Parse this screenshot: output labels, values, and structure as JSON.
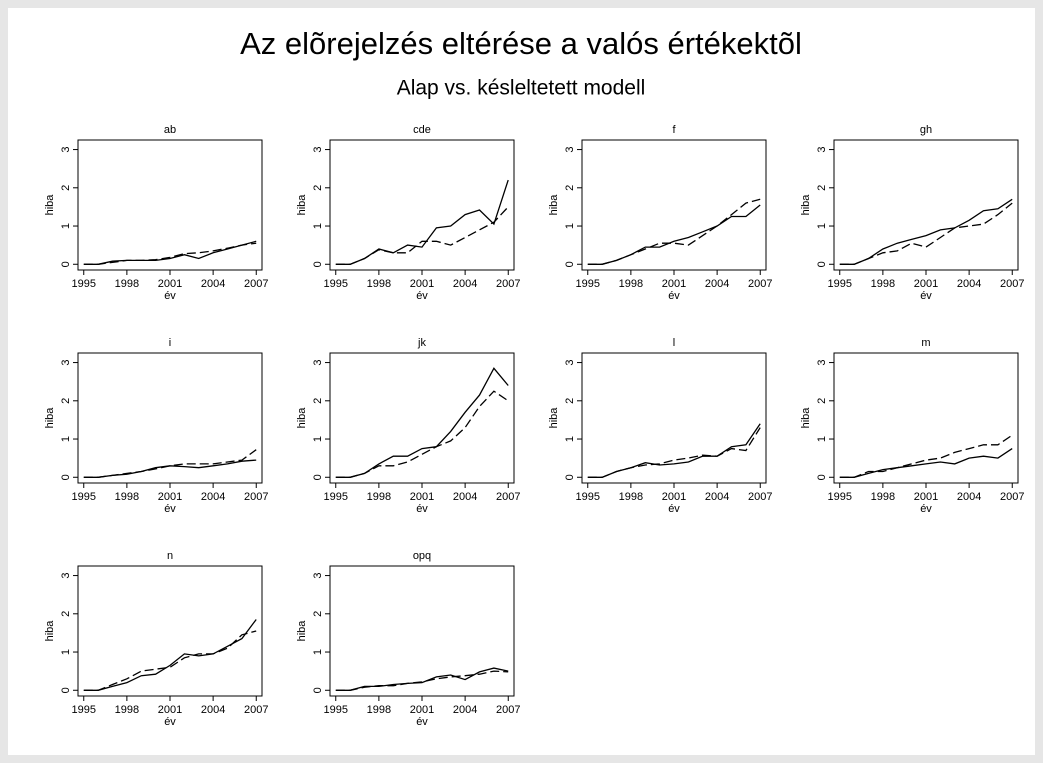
{
  "title": "Az elõrejelzés eltérése a valós értékektõl",
  "subtitle": "Alap vs. késleltetett modell",
  "chart_data": [
    {
      "type": "line",
      "title": "ab",
      "xlabel": "év",
      "ylabel": "hiba",
      "x": [
        1995,
        1996,
        1997,
        1998,
        1999,
        2000,
        2001,
        2002,
        2003,
        2004,
        2005,
        2006,
        2007
      ],
      "xlim": [
        1994.6,
        2007.4
      ],
      "xticks": [
        1995,
        1998,
        2001,
        2004,
        2007
      ],
      "ylim": [
        -0.15,
        3.25
      ],
      "yticks": [
        0,
        1,
        2,
        3
      ],
      "series": [
        {
          "color": "#000000",
          "style": "solid",
          "values": [
            0,
            0,
            0.08,
            0.1,
            0.1,
            0.1,
            0.15,
            0.25,
            0.15,
            0.3,
            0.4,
            0.5,
            0.6
          ]
        },
        {
          "color": "#000000",
          "style": "dashed",
          "values": [
            0,
            0,
            0.05,
            0.1,
            0.1,
            0.12,
            0.18,
            0.28,
            0.3,
            0.35,
            0.42,
            0.5,
            0.55
          ]
        }
      ]
    },
    {
      "type": "line",
      "title": "cde",
      "xlabel": "év",
      "ylabel": "hiba",
      "x": [
        1995,
        1996,
        1997,
        1998,
        1999,
        2000,
        2001,
        2002,
        2003,
        2004,
        2005,
        2006,
        2007
      ],
      "xlim": [
        1994.6,
        2007.4
      ],
      "xticks": [
        1995,
        1998,
        2001,
        2004,
        2007
      ],
      "ylim": [
        -0.15,
        3.25
      ],
      "yticks": [
        0,
        1,
        2,
        3
      ],
      "series": [
        {
          "color": "#000000",
          "style": "solid",
          "values": [
            0,
            0,
            0.15,
            0.4,
            0.3,
            0.5,
            0.45,
            0.95,
            1.0,
            1.3,
            1.42,
            1.05,
            2.2
          ]
        },
        {
          "color": "#000000",
          "style": "dashed",
          "values": [
            0,
            0,
            0.15,
            0.38,
            0.3,
            0.3,
            0.6,
            0.6,
            0.5,
            0.7,
            0.9,
            1.1,
            1.5
          ]
        }
      ]
    },
    {
      "type": "line",
      "title": "f",
      "xlabel": "év",
      "ylabel": "hiba",
      "x": [
        1995,
        1996,
        1997,
        1998,
        1999,
        2000,
        2001,
        2002,
        2003,
        2004,
        2005,
        2006,
        2007
      ],
      "xlim": [
        1994.6,
        2007.4
      ],
      "xticks": [
        1995,
        1998,
        2001,
        2004,
        2007
      ],
      "ylim": [
        -0.15,
        3.25
      ],
      "yticks": [
        0,
        1,
        2,
        3
      ],
      "series": [
        {
          "color": "#000000",
          "style": "solid",
          "values": [
            0,
            0,
            0.1,
            0.25,
            0.45,
            0.45,
            0.6,
            0.7,
            0.85,
            1.0,
            1.25,
            1.25,
            1.55
          ]
        },
        {
          "color": "#000000",
          "style": "dashed",
          "values": [
            0,
            0,
            0.1,
            0.25,
            0.4,
            0.55,
            0.55,
            0.5,
            0.75,
            1.0,
            1.3,
            1.6,
            1.7
          ]
        }
      ]
    },
    {
      "type": "line",
      "title": "gh",
      "xlabel": "év",
      "ylabel": "hiba",
      "x": [
        1995,
        1996,
        1997,
        1998,
        1999,
        2000,
        2001,
        2002,
        2003,
        2004,
        2005,
        2006,
        2007
      ],
      "xlim": [
        1994.6,
        2007.4
      ],
      "xticks": [
        1995,
        1998,
        2001,
        2004,
        2007
      ],
      "ylim": [
        -0.15,
        3.25
      ],
      "yticks": [
        0,
        1,
        2,
        3
      ],
      "series": [
        {
          "color": "#000000",
          "style": "solid",
          "values": [
            0,
            0,
            0.15,
            0.4,
            0.55,
            0.65,
            0.75,
            0.9,
            0.95,
            1.15,
            1.4,
            1.45,
            1.7
          ]
        },
        {
          "color": "#000000",
          "style": "dashed",
          "values": [
            0,
            0,
            0.15,
            0.3,
            0.35,
            0.55,
            0.45,
            0.7,
            0.95,
            1.0,
            1.05,
            1.3,
            1.6
          ]
        }
      ]
    },
    {
      "type": "line",
      "title": "i",
      "xlabel": "év",
      "ylabel": "hiba",
      "x": [
        1995,
        1996,
        1997,
        1998,
        1999,
        2000,
        2001,
        2002,
        2003,
        2004,
        2005,
        2006,
        2007
      ],
      "xlim": [
        1994.6,
        2007.4
      ],
      "xticks": [
        1995,
        1998,
        2001,
        2004,
        2007
      ],
      "ylim": [
        -0.15,
        3.25
      ],
      "yticks": [
        0,
        1,
        2,
        3
      ],
      "series": [
        {
          "color": "#000000",
          "style": "solid",
          "values": [
            0,
            0,
            0.05,
            0.08,
            0.15,
            0.25,
            0.3,
            0.28,
            0.25,
            0.3,
            0.35,
            0.42,
            0.45
          ]
        },
        {
          "color": "#000000",
          "style": "dashed",
          "values": [
            0,
            0,
            0.05,
            0.1,
            0.15,
            0.22,
            0.3,
            0.35,
            0.35,
            0.35,
            0.4,
            0.45,
            0.72
          ]
        }
      ]
    },
    {
      "type": "line",
      "title": "jk",
      "xlabel": "év",
      "ylabel": "hiba",
      "x": [
        1995,
        1996,
        1997,
        1998,
        1999,
        2000,
        2001,
        2002,
        2003,
        2004,
        2005,
        2006,
        2007
      ],
      "xlim": [
        1994.6,
        2007.4
      ],
      "xticks": [
        1995,
        1998,
        2001,
        2004,
        2007
      ],
      "ylim": [
        -0.15,
        3.25
      ],
      "yticks": [
        0,
        1,
        2,
        3
      ],
      "series": [
        {
          "color": "#000000",
          "style": "solid",
          "values": [
            0,
            0,
            0.1,
            0.35,
            0.55,
            0.55,
            0.75,
            0.8,
            1.2,
            1.7,
            2.15,
            2.85,
            2.4
          ]
        },
        {
          "color": "#000000",
          "style": "dashed",
          "values": [
            0,
            0,
            0.1,
            0.3,
            0.3,
            0.4,
            0.6,
            0.8,
            0.95,
            1.3,
            1.85,
            2.25,
            2.0
          ]
        }
      ]
    },
    {
      "type": "line",
      "title": "l",
      "xlabel": "év",
      "ylabel": "hiba",
      "x": [
        1995,
        1996,
        1997,
        1998,
        1999,
        2000,
        2001,
        2002,
        2003,
        2004,
        2005,
        2006,
        2007
      ],
      "xlim": [
        1994.6,
        2007.4
      ],
      "xticks": [
        1995,
        1998,
        2001,
        2004,
        2007
      ],
      "ylim": [
        -0.15,
        3.25
      ],
      "yticks": [
        0,
        1,
        2,
        3
      ],
      "series": [
        {
          "color": "#000000",
          "style": "solid",
          "values": [
            0,
            0,
            0.15,
            0.25,
            0.38,
            0.32,
            0.35,
            0.4,
            0.55,
            0.55,
            0.8,
            0.85,
            1.4
          ]
        },
        {
          "color": "#000000",
          "style": "dashed",
          "values": [
            0,
            0,
            0.15,
            0.25,
            0.32,
            0.35,
            0.45,
            0.5,
            0.58,
            0.55,
            0.75,
            0.7,
            1.3
          ]
        }
      ]
    },
    {
      "type": "line",
      "title": "m",
      "xlabel": "év",
      "ylabel": "hiba",
      "x": [
        1995,
        1996,
        1997,
        1998,
        1999,
        2000,
        2001,
        2002,
        2003,
        2004,
        2005,
        2006,
        2007
      ],
      "xlim": [
        1994.6,
        2007.4
      ],
      "xticks": [
        1995,
        1998,
        2001,
        2004,
        2007
      ],
      "ylim": [
        -0.15,
        3.25
      ],
      "yticks": [
        0,
        1,
        2,
        3
      ],
      "series": [
        {
          "color": "#000000",
          "style": "solid",
          "values": [
            0,
            0,
            0.1,
            0.2,
            0.25,
            0.3,
            0.35,
            0.4,
            0.35,
            0.5,
            0.55,
            0.5,
            0.75
          ]
        },
        {
          "color": "#000000",
          "style": "dashed",
          "values": [
            0,
            0,
            0.15,
            0.15,
            0.25,
            0.35,
            0.45,
            0.5,
            0.65,
            0.75,
            0.85,
            0.85,
            1.1
          ]
        }
      ]
    },
    {
      "type": "line",
      "title": "n",
      "xlabel": "év",
      "ylabel": "hiba",
      "x": [
        1995,
        1996,
        1997,
        1998,
        1999,
        2000,
        2001,
        2002,
        2003,
        2004,
        2005,
        2006,
        2007
      ],
      "xlim": [
        1994.6,
        2007.4
      ],
      "xticks": [
        1995,
        1998,
        2001,
        2004,
        2007
      ],
      "ylim": [
        -0.15,
        3.25
      ],
      "yticks": [
        0,
        1,
        2,
        3
      ],
      "series": [
        {
          "color": "#000000",
          "style": "solid",
          "values": [
            0,
            0,
            0.1,
            0.2,
            0.38,
            0.42,
            0.65,
            0.95,
            0.9,
            0.95,
            1.15,
            1.35,
            1.85
          ]
        },
        {
          "color": "#000000",
          "style": "dashed",
          "values": [
            0,
            0,
            0.15,
            0.3,
            0.5,
            0.55,
            0.6,
            0.85,
            0.95,
            0.95,
            1.1,
            1.45,
            1.55
          ]
        }
      ]
    },
    {
      "type": "line",
      "title": "opq",
      "xlabel": "év",
      "ylabel": "hiba",
      "x": [
        1995,
        1996,
        1997,
        1998,
        1999,
        2000,
        2001,
        2002,
        2003,
        2004,
        2005,
        2006,
        2007
      ],
      "xlim": [
        1994.6,
        2007.4
      ],
      "xticks": [
        1995,
        1998,
        2001,
        2004,
        2007
      ],
      "ylim": [
        -0.15,
        3.25
      ],
      "yticks": [
        0,
        1,
        2,
        3
      ],
      "series": [
        {
          "color": "#000000",
          "style": "solid",
          "values": [
            0,
            0,
            0.1,
            0.1,
            0.15,
            0.18,
            0.2,
            0.35,
            0.4,
            0.28,
            0.48,
            0.58,
            0.5
          ]
        },
        {
          "color": "#000000",
          "style": "dashed",
          "values": [
            0,
            0,
            0.08,
            0.12,
            0.12,
            0.18,
            0.22,
            0.3,
            0.35,
            0.38,
            0.42,
            0.5,
            0.48
          ]
        }
      ]
    }
  ]
}
